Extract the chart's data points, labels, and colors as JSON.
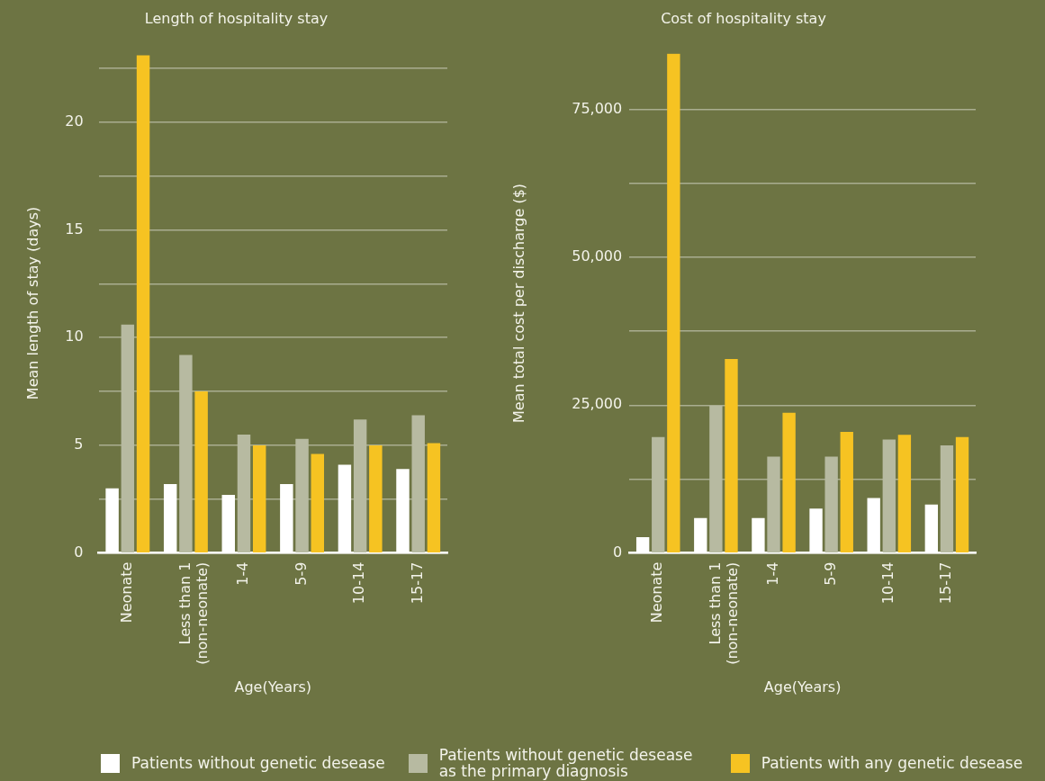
{
  "chart_data": [
    {
      "type": "bar",
      "title": "Length of hospitality stay",
      "xlabel": "Age(Years)",
      "ylabel": "Mean length of stay (days)",
      "categories": [
        "Neonate",
        "Less than 1\n(non-neonate)",
        "1-4",
        "5-9",
        "10-14",
        "15-17"
      ],
      "series": [
        {
          "name": "Patients without genetic desease",
          "color": "#ffffff",
          "values": [
            3.0,
            3.2,
            2.7,
            3.2,
            4.1,
            3.9
          ]
        },
        {
          "name": "Patients without genetic desease as the primary diagnosis",
          "color": "#b7baa1",
          "values": [
            10.6,
            9.2,
            5.5,
            5.3,
            6.2,
            6.4
          ]
        },
        {
          "name": "Patients with any genetic desease",
          "color": "#f6c322",
          "values": [
            23.1,
            7.5,
            5.0,
            4.6,
            5.0,
            5.1
          ]
        }
      ],
      "ylim": [
        0,
        23.2
      ],
      "yticks": [
        0,
        {
          "value": 2.5,
          "label": null
        },
        5,
        {
          "value": 7.5,
          "label": null
        },
        10,
        {
          "value": 12.5,
          "label": null
        },
        15,
        {
          "value": 17.5,
          "label": null
        },
        20,
        {
          "value": 22.5,
          "label": null
        }
      ],
      "grid": "y",
      "legend": "bottom"
    },
    {
      "type": "bar",
      "title": "Cost of hospitality stay",
      "xlabel": "Age(Years)",
      "ylabel": "Mean total cost per discharge ($)",
      "categories": [
        "Neonate",
        "Less than 1\n(non-neonate)",
        "1-4",
        "5-9",
        "10-14",
        "15-17"
      ],
      "series": [
        {
          "name": "Patients without genetic desease",
          "color": "#ffffff",
          "values": [
            2700,
            5900,
            5900,
            7500,
            9300,
            8200
          ]
        },
        {
          "name": "Patients without genetic desease as the primary diagnosis",
          "color": "#b7baa1",
          "values": [
            19600,
            24900,
            16300,
            16300,
            19200,
            18200
          ]
        },
        {
          "name": "Patients with any genetic desease",
          "color": "#f6c322",
          "values": [
            84400,
            32800,
            23700,
            20500,
            20000,
            19600
          ]
        }
      ],
      "ylim": [
        0,
        84500
      ],
      "yticks": [
        0,
        {
          "value": 12500,
          "label": null
        },
        {
          "value": 25000,
          "label": "25,000"
        },
        {
          "value": 37500,
          "label": null
        },
        {
          "value": 50000,
          "label": "50,000"
        },
        {
          "value": 62500,
          "label": null
        },
        {
          "value": 75000,
          "label": "75,000"
        }
      ],
      "grid": "y",
      "legend": "bottom"
    }
  ]
}
